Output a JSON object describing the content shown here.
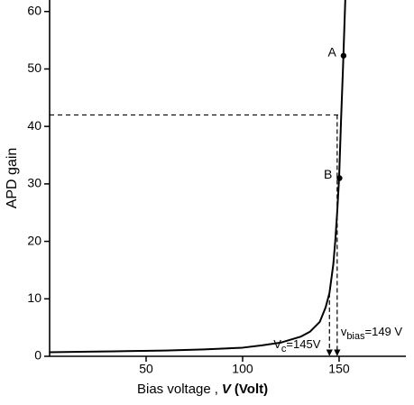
{
  "chart_data": {
    "type": "line",
    "y_label": "APD gain",
    "x_label_parts": [
      "Bias voltage",
      ",",
      "V",
      "(Volt)"
    ],
    "x": [
      0,
      20,
      40,
      60,
      80,
      100,
      110,
      120,
      130,
      135,
      140,
      143,
      145,
      147,
      148,
      149,
      150,
      151,
      152,
      152.5,
      153.2
    ],
    "series": [
      {
        "name": "APD gain",
        "color": "#000000",
        "values": [
          0.7,
          0.8,
          0.9,
          1.0,
          1.2,
          1.5,
          1.9,
          2.4,
          3.4,
          4.3,
          6,
          8.5,
          11,
          16,
          20,
          25,
          31,
          41,
          50,
          55,
          62
        ]
      }
    ],
    "xlim": [
      0,
      184.6
    ],
    "ylim": [
      0,
      62
    ],
    "xticks": [
      50,
      100,
      150
    ],
    "yticks": [
      0,
      10,
      20,
      30,
      40,
      50,
      60
    ],
    "points": [
      {
        "label": "A",
        "x": 152.3,
        "y": 52.3
      },
      {
        "label": "B",
        "x": 150.2,
        "y": 31
      }
    ],
    "reference_gain": 42,
    "voltage_markers": [
      {
        "label": "V",
        "sub": "c",
        "suffix": "=145V",
        "x": 145
      },
      {
        "label": "v",
        "sub": "bias",
        "suffix": "=149 V",
        "x": 149
      }
    ]
  }
}
